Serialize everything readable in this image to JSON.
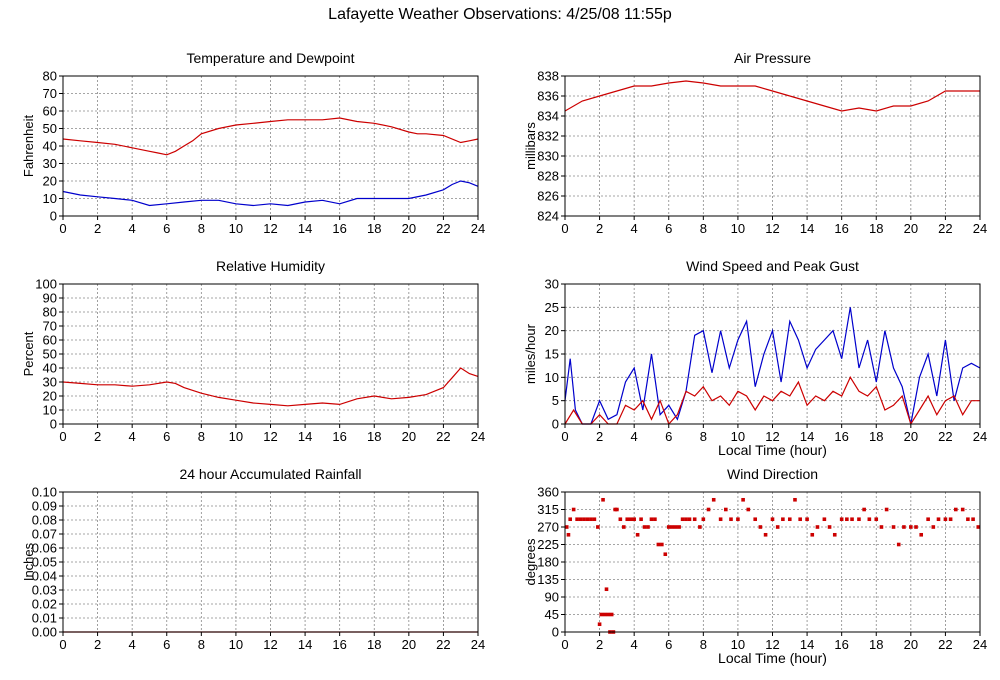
{
  "page_title": "Lafayette Weather Observations: 4/25/08 11:55p",
  "colors": {
    "red": "#cc0000",
    "blue": "#0000cc",
    "grid": "#888888"
  },
  "chart_data": [
    {
      "id": "temp",
      "type": "line",
      "title": "Temperature and Dewpoint",
      "ylabel": "Fahrenheit",
      "xlabel": "",
      "xlim": [
        0,
        24
      ],
      "ylim": [
        0,
        80
      ],
      "x_ticks": [
        0,
        2,
        4,
        6,
        8,
        10,
        12,
        14,
        16,
        18,
        20,
        22,
        24
      ],
      "y_ticks": [
        0,
        10,
        20,
        30,
        40,
        50,
        60,
        70,
        80
      ],
      "grid": true,
      "series": [
        {
          "color": "#cc0000",
          "x": [
            0,
            1,
            2,
            3,
            4,
            5,
            5.5,
            6,
            6.5,
            7,
            7.5,
            8,
            9,
            10,
            11,
            12,
            13,
            14,
            15,
            16,
            17,
            18,
            19,
            20,
            20.5,
            21,
            22,
            23,
            23.5,
            24
          ],
          "y": [
            44,
            43,
            42,
            41,
            39,
            37,
            36,
            35,
            37,
            40,
            43,
            47,
            50,
            52,
            53,
            54,
            55,
            55,
            55,
            56,
            54,
            53,
            51,
            48,
            47,
            47,
            46,
            42,
            43,
            44
          ]
        },
        {
          "color": "#0000cc",
          "x": [
            0,
            1,
            2,
            3,
            4,
            5,
            6,
            7,
            8,
            9,
            10,
            11,
            12,
            13,
            14,
            15,
            16,
            17,
            18,
            19,
            20,
            21,
            22,
            22.5,
            23,
            23.5,
            24
          ],
          "y": [
            14,
            12,
            11,
            10,
            9,
            6,
            7,
            8,
            9,
            9,
            7,
            6,
            7,
            6,
            8,
            9,
            7,
            10,
            10,
            10,
            10,
            12,
            15,
            18,
            20,
            19,
            17
          ]
        }
      ]
    },
    {
      "id": "pressure",
      "type": "line",
      "title": "Air Pressure",
      "ylabel": "millibars",
      "xlabel": "",
      "xlim": [
        0,
        24
      ],
      "ylim": [
        824,
        838
      ],
      "x_ticks": [
        0,
        2,
        4,
        6,
        8,
        10,
        12,
        14,
        16,
        18,
        20,
        22,
        24
      ],
      "y_ticks": [
        824,
        826,
        828,
        830,
        832,
        834,
        836,
        838
      ],
      "grid": true,
      "series": [
        {
          "color": "#cc0000",
          "x": [
            0,
            1,
            2,
            3,
            4,
            5,
            6,
            7,
            8,
            9,
            10,
            11,
            12,
            13,
            14,
            15,
            16,
            17,
            18,
            19,
            20,
            21,
            22,
            23,
            24
          ],
          "y": [
            834.5,
            835.5,
            836,
            836.5,
            837,
            837,
            837.3,
            837.5,
            837.3,
            837,
            837,
            837,
            836.5,
            836,
            835.5,
            835,
            834.5,
            834.8,
            834.5,
            835,
            835,
            835.5,
            836.5,
            836.5,
            836.5
          ]
        }
      ]
    },
    {
      "id": "humidity",
      "type": "line",
      "title": "Relative Humidity",
      "ylabel": "Percent",
      "xlabel": "",
      "xlim": [
        0,
        24
      ],
      "ylim": [
        0,
        100
      ],
      "x_ticks": [
        0,
        2,
        4,
        6,
        8,
        10,
        12,
        14,
        16,
        18,
        20,
        22,
        24
      ],
      "y_ticks": [
        0,
        10,
        20,
        30,
        40,
        50,
        60,
        70,
        80,
        90,
        100
      ],
      "grid": true,
      "series": [
        {
          "color": "#cc0000",
          "x": [
            0,
            1,
            2,
            3,
            4,
            5,
            6,
            6.5,
            7,
            8,
            9,
            10,
            11,
            12,
            13,
            14,
            15,
            16,
            17,
            18,
            19,
            20,
            21,
            22,
            22.5,
            23,
            23.5,
            24
          ],
          "y": [
            30,
            29,
            28,
            28,
            27,
            28,
            30,
            29,
            26,
            22,
            19,
            17,
            15,
            14,
            13,
            14,
            15,
            14,
            18,
            20,
            18,
            19,
            21,
            26,
            33,
            40,
            36,
            34
          ]
        }
      ]
    },
    {
      "id": "wind_speed",
      "type": "line",
      "title": "Wind Speed and Peak Gust",
      "ylabel": "miles/hour",
      "xlabel": "Local Time (hour)",
      "xlim": [
        0,
        24
      ],
      "ylim": [
        0,
        30
      ],
      "x_ticks": [
        0,
        2,
        4,
        6,
        8,
        10,
        12,
        14,
        16,
        18,
        20,
        22,
        24
      ],
      "y_ticks": [
        0,
        5,
        10,
        15,
        20,
        25,
        30
      ],
      "grid": true,
      "series": [
        {
          "color": "#0000cc",
          "x": [
            0,
            0.3,
            0.6,
            1,
            1.5,
            2,
            2.5,
            3,
            3.5,
            4,
            4.5,
            5,
            5.5,
            6,
            6.5,
            7,
            7.5,
            8,
            8.5,
            9,
            9.5,
            10,
            10.5,
            11,
            11.5,
            12,
            12.5,
            13,
            13.5,
            14,
            14.5,
            15,
            15.5,
            16,
            16.5,
            17,
            17.5,
            18,
            18.5,
            19,
            19.5,
            20,
            20.5,
            21,
            21.5,
            22,
            22.5,
            23,
            23.5,
            24
          ],
          "y": [
            5,
            14,
            3,
            0,
            0,
            5,
            1,
            2,
            9,
            12,
            3,
            15,
            2,
            4,
            1,
            7,
            19,
            20,
            11,
            20,
            12,
            18,
            22,
            8,
            15,
            20,
            9,
            22,
            18,
            12,
            16,
            18,
            20,
            14,
            25,
            12,
            18,
            9,
            20,
            12,
            8,
            0,
            10,
            15,
            6,
            18,
            5,
            12,
            13,
            12
          ]
        },
        {
          "color": "#cc0000",
          "x": [
            0,
            0.5,
            1,
            1.5,
            2,
            2.5,
            3,
            3.5,
            4,
            4.5,
            5,
            5.5,
            6,
            6.5,
            7,
            7.5,
            8,
            8.5,
            9,
            9.5,
            10,
            10.5,
            11,
            11.5,
            12,
            12.5,
            13,
            13.5,
            14,
            14.5,
            15,
            15.5,
            16,
            16.5,
            17,
            17.5,
            18,
            18.5,
            19,
            19.5,
            20,
            20.5,
            21,
            21.5,
            22,
            22.5,
            23,
            23.5,
            24
          ],
          "y": [
            0,
            3,
            0,
            0,
            2,
            0,
            0,
            4,
            3,
            5,
            1,
            5,
            0,
            2,
            7,
            6,
            8,
            5,
            6,
            4,
            7,
            6,
            3,
            6,
            5,
            7,
            6,
            9,
            4,
            6,
            5,
            7,
            6,
            10,
            7,
            6,
            8,
            3,
            4,
            6,
            0,
            3,
            6,
            2,
            5,
            6,
            2,
            5,
            5
          ]
        }
      ]
    },
    {
      "id": "rainfall",
      "type": "line",
      "title": "24 hour Accumulated Rainfall",
      "ylabel": "Inches",
      "xlabel": "",
      "xlim": [
        0,
        24
      ],
      "ylim": [
        0,
        0.1
      ],
      "x_ticks": [
        0,
        2,
        4,
        6,
        8,
        10,
        12,
        14,
        16,
        18,
        20,
        22,
        24
      ],
      "y_ticks": [
        "0.00",
        "0.01",
        "0.02",
        "0.03",
        "0.04",
        "0.05",
        "0.06",
        "0.07",
        "0.08",
        "0.09",
        "0.10"
      ],
      "grid": true,
      "series": [
        {
          "color": "#cc0000",
          "x": [
            0,
            24
          ],
          "y": [
            0,
            0
          ]
        }
      ]
    },
    {
      "id": "wind_dir",
      "type": "scatter",
      "title": "Wind Direction",
      "ylabel": "degrees",
      "xlabel": "Local Time (hour)",
      "xlim": [
        0,
        24
      ],
      "ylim": [
        0,
        360
      ],
      "x_ticks": [
        0,
        2,
        4,
        6,
        8,
        10,
        12,
        14,
        16,
        18,
        20,
        22,
        24
      ],
      "y_ticks": [
        0,
        45,
        90,
        135,
        180,
        225,
        270,
        315,
        360
      ],
      "grid": true,
      "series": [
        {
          "color": "#cc0000",
          "x": [
            0.1,
            0.2,
            0.3,
            0.5,
            0.7,
            0.9,
            1.1,
            1.3,
            1.5,
            1.7,
            1.9,
            2.0,
            2.1,
            2.2,
            2.3,
            2.4,
            2.5,
            2.6,
            2.7,
            2.8,
            2.9,
            3.0,
            3.2,
            3.4,
            3.6,
            3.8,
            4.0,
            4.2,
            4.4,
            4.6,
            4.8,
            5.0,
            5.2,
            5.4,
            5.6,
            5.8,
            6.0,
            6.2,
            6.4,
            6.6,
            6.8,
            7.0,
            7.2,
            7.5,
            7.8,
            8.0,
            8.3,
            8.6,
            9.0,
            9.3,
            9.6,
            10.0,
            10.3,
            10.6,
            11.0,
            11.3,
            11.6,
            12.0,
            12.3,
            12.6,
            13.0,
            13.3,
            13.6,
            14.0,
            14.3,
            14.6,
            15.0,
            15.3,
            15.6,
            16.0,
            16.3,
            16.6,
            17.0,
            17.3,
            17.6,
            18.0,
            18.3,
            18.6,
            19.0,
            19.3,
            19.6,
            20.0,
            20.3,
            20.6,
            21.0,
            21.3,
            21.6,
            22.0,
            22.3,
            22.6,
            23.0,
            23.3,
            23.6,
            23.9
          ],
          "y": [
            270,
            250,
            290,
            315,
            290,
            290,
            290,
            290,
            290,
            290,
            270,
            20,
            45,
            340,
            45,
            110,
            45,
            0,
            45,
            0,
            315,
            315,
            290,
            270,
            290,
            290,
            290,
            250,
            290,
            270,
            270,
            290,
            290,
            225,
            225,
            200,
            270,
            270,
            270,
            270,
            290,
            290,
            290,
            290,
            270,
            290,
            315,
            340,
            290,
            315,
            290,
            290,
            340,
            315,
            290,
            270,
            250,
            290,
            270,
            290,
            290,
            340,
            290,
            290,
            250,
            270,
            290,
            270,
            250,
            290,
            290,
            290,
            290,
            315,
            290,
            290,
            270,
            315,
            270,
            225,
            270,
            270,
            270,
            250,
            290,
            270,
            290,
            290,
            290,
            315,
            315,
            290,
            290,
            270
          ]
        }
      ]
    }
  ]
}
